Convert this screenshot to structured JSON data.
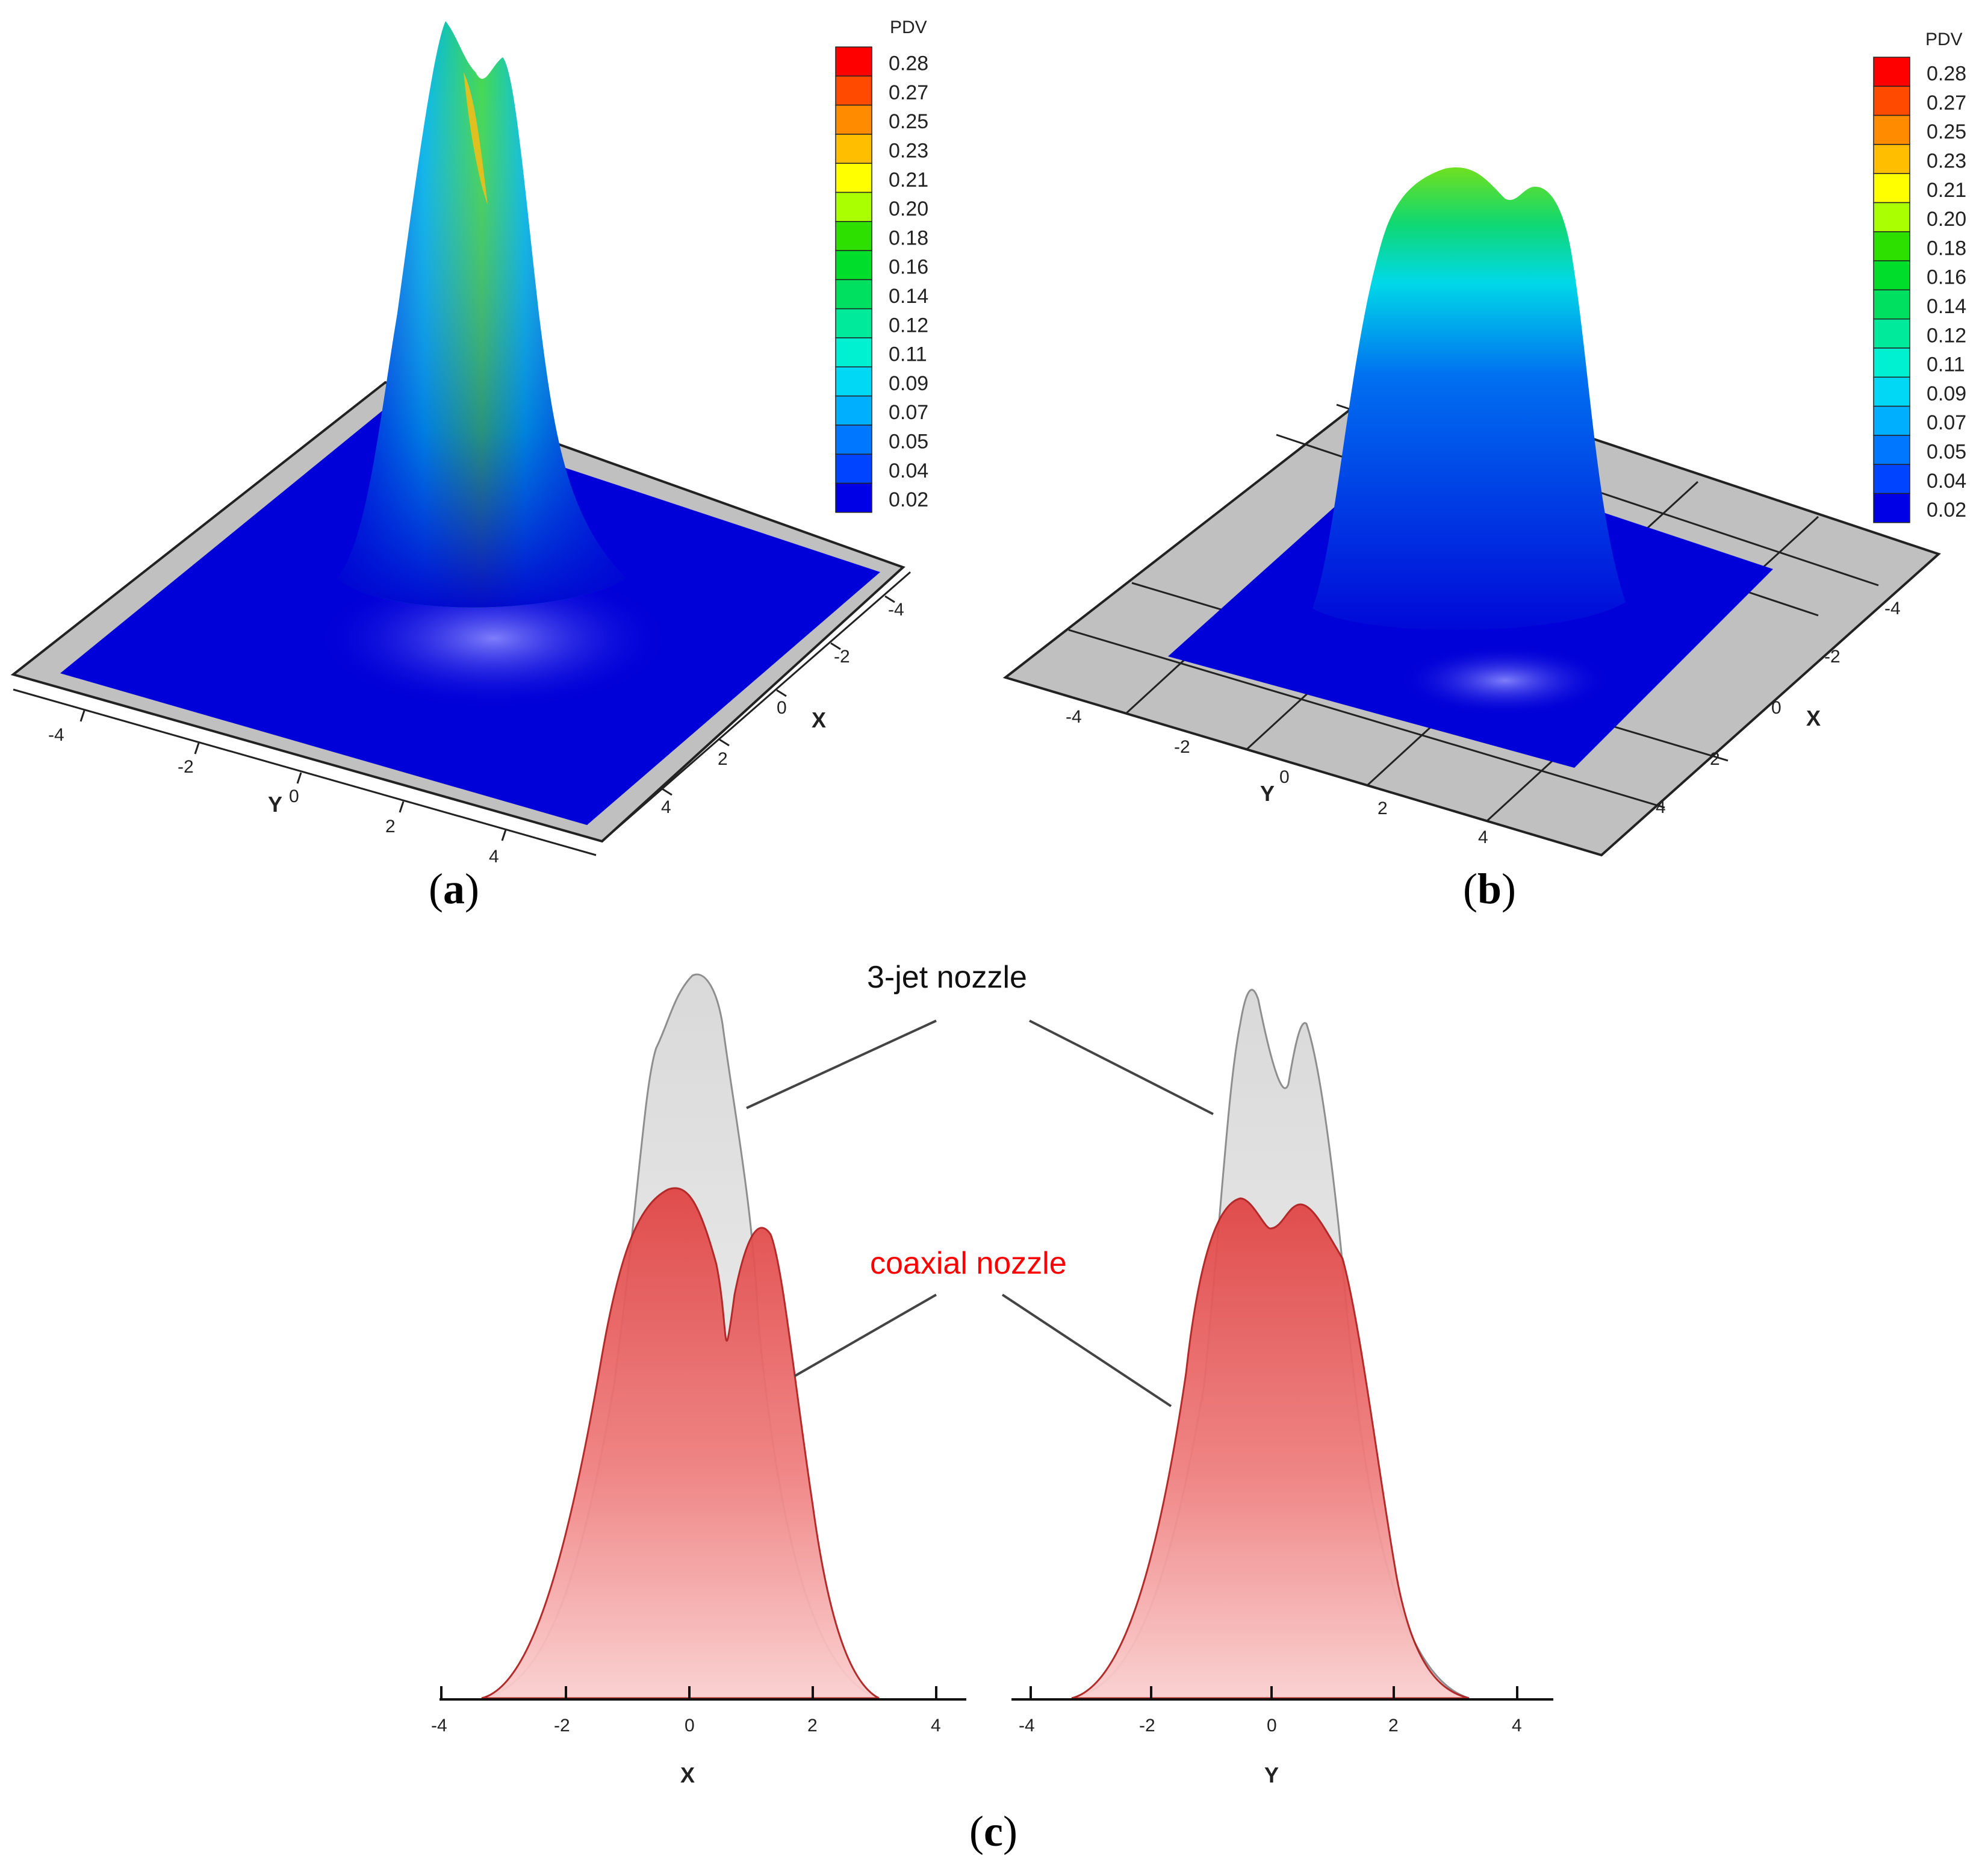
{
  "colorbar": {
    "title": "PDV",
    "levels": [
      "0.28",
      "0.27",
      "0.25",
      "0.23",
      "0.21",
      "0.20",
      "0.18",
      "0.16",
      "0.14",
      "0.12",
      "0.11",
      "0.09",
      "0.07",
      "0.05",
      "0.04",
      "0.02"
    ],
    "colors": [
      "#ff0000",
      "#ff4a00",
      "#ff8c00",
      "#ffbf00",
      "#ffff00",
      "#aaff00",
      "#2ee000",
      "#00dd2b",
      "#00e060",
      "#00ea9c",
      "#00f0d2",
      "#00d8f5",
      "#00b0ff",
      "#0077ff",
      "#0044ff",
      "#0000e6"
    ]
  },
  "panel_a": {
    "caption": "a",
    "x_axis_label": "X",
    "y_axis_label": "Y",
    "x_ticks": [
      "-4",
      "-2",
      "0",
      "2",
      "4"
    ],
    "y_ticks": [
      "-4",
      "-2",
      "0",
      "2",
      "4"
    ]
  },
  "panel_b": {
    "caption": "b",
    "x_axis_label": "X",
    "y_axis_label": "Y",
    "x_ticks": [
      "-4",
      "-2",
      "0",
      "2",
      "4"
    ],
    "y_ticks": [
      "-4",
      "-2",
      "0",
      "2",
      "4"
    ]
  },
  "panel_c": {
    "caption": "c",
    "label_3jet": "3-jet nozzle",
    "label_coaxial": "coaxial nozzle",
    "left_axis_label": "X",
    "right_axis_label": "Y",
    "ticks": [
      "-4",
      "-2",
      "0",
      "2",
      "4"
    ],
    "colors": {
      "three_jet": "#cfcfcf",
      "coaxial": "#e03030",
      "coaxial_label": "#ff0000"
    }
  }
}
